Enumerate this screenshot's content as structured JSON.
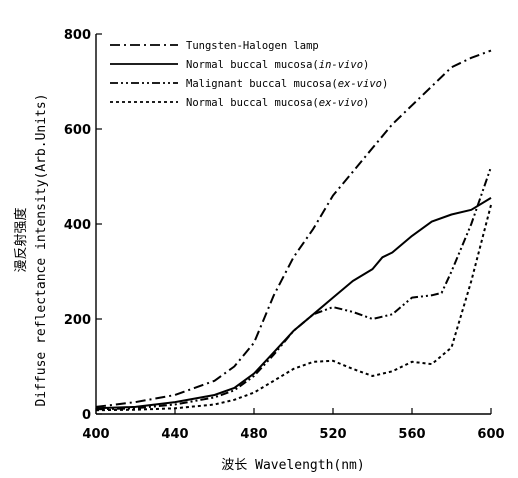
{
  "chart_data": {
    "type": "line",
    "xlabel": "波长 Wavelength(nm)",
    "ylabel": "Diffuse reflectance intensity(Arb.Units)",
    "ylabel_cn": "漫反射强度",
    "xlim": [
      400,
      600
    ],
    "ylim": [
      0,
      800
    ],
    "x_ticks": [
      400,
      440,
      480,
      520,
      560,
      600
    ],
    "y_ticks": [
      0,
      200,
      400,
      600,
      800
    ],
    "grid": false,
    "legend_position": "top",
    "series": [
      {
        "name": "Tungsten-Halogen lamp",
        "legend_parts": [
          {
            "text": "Tungsten-Halogen lamp",
            "italic": false
          }
        ],
        "color": "#000000",
        "dash": "10 4 2 4",
        "x": [
          400,
          420,
          440,
          460,
          470,
          480,
          490,
          500,
          510,
          520,
          530,
          540,
          550,
          560,
          570,
          580,
          590,
          600
        ],
        "y": [
          15,
          25,
          40,
          70,
          100,
          150,
          250,
          330,
          390,
          460,
          510,
          560,
          610,
          650,
          690,
          730,
          750,
          765
        ]
      },
      {
        "name": "Normal buccal mucosa(in-vivo)",
        "legend_parts": [
          {
            "text": "Normal buccal mucosa(",
            "italic": false
          },
          {
            "text": "in-vivo",
            "italic": true
          },
          {
            "text": ")",
            "italic": false
          }
        ],
        "color": "#000000",
        "dash": "",
        "x": [
          400,
          420,
          440,
          460,
          470,
          480,
          490,
          500,
          510,
          520,
          530,
          540,
          545,
          550,
          560,
          570,
          580,
          590,
          600
        ],
        "y": [
          12,
          15,
          25,
          40,
          55,
          85,
          130,
          175,
          210,
          245,
          280,
          305,
          330,
          340,
          375,
          405,
          420,
          430,
          455
        ]
      },
      {
        "name": "Malignant buccal mucosa(ex-vivo)",
        "legend_parts": [
          {
            "text": "Malignant buccal mucosa(",
            "italic": false
          },
          {
            "text": "ex-vivo",
            "italic": true
          },
          {
            "text": ")",
            "italic": false
          }
        ],
        "color": "#000000",
        "dash": "8 3 2 3 2 3",
        "x": [
          400,
          420,
          440,
          460,
          470,
          480,
          490,
          500,
          510,
          520,
          530,
          540,
          550,
          560,
          570,
          575,
          580,
          590,
          600
        ],
        "y": [
          10,
          12,
          20,
          35,
          50,
          80,
          125,
          175,
          210,
          225,
          215,
          200,
          210,
          245,
          250,
          255,
          300,
          400,
          520
        ]
      },
      {
        "name": "Normal buccal mucosa(ex-vivo)",
        "legend_parts": [
          {
            "text": "Normal buccal mucosa(",
            "italic": false
          },
          {
            "text": "ex-vivo",
            "italic": true
          },
          {
            "text": ")",
            "italic": false
          }
        ],
        "color": "#000000",
        "dash": "3 3",
        "x": [
          400,
          420,
          440,
          460,
          470,
          480,
          490,
          500,
          510,
          520,
          530,
          540,
          550,
          560,
          570,
          580,
          590,
          600
        ],
        "y": [
          8,
          9,
          12,
          20,
          30,
          45,
          70,
          95,
          110,
          112,
          95,
          80,
          90,
          110,
          105,
          140,
          280,
          440
        ]
      }
    ]
  }
}
